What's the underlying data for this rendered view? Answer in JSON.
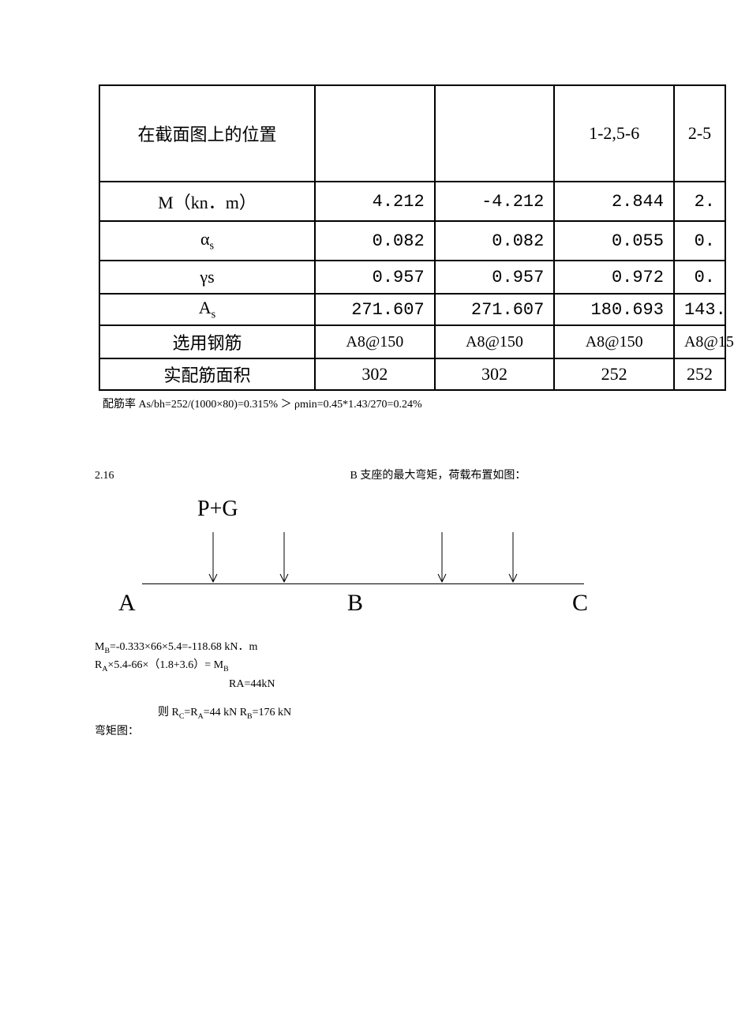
{
  "table": {
    "headers": {
      "pos": "在截面图上的位置",
      "c3": "1-2,5-6",
      "c4": "2-5"
    },
    "rows": {
      "m_label": "M（kn．m）",
      "m": [
        "4.212",
        "-4.212",
        "2.844",
        "2."
      ],
      "alpha_label_pre": "α",
      "alpha_label_sub": "s",
      "alpha": [
        "0.082",
        "0.082",
        "0.055",
        "0."
      ],
      "gamma_label": "γs",
      "gamma": [
        "0.957",
        "0.957",
        "0.972",
        "0."
      ],
      "as_label_pre": "A",
      "as_label_sub": "s",
      "as": [
        "271.607",
        "271.607",
        "180.693",
        "143."
      ],
      "steel_label": "选用钢筋",
      "steel": [
        "A8@150",
        "A8@150",
        "A8@150",
        "A8@15"
      ],
      "area_label": "实配筋面积",
      "area": [
        "302",
        "302",
        "252",
        "252"
      ]
    }
  },
  "note": "配筋率 As/bh=252/(1000×80)=0.315% ＞ ρmin=0.45*1.43/270=0.24%",
  "section": {
    "num": "2.16",
    "desc": "B 支座的最大弯矩，荷载布置如图："
  },
  "diagram": {
    "pg": "P+G",
    "A": "A",
    "B": "B",
    "C": "C",
    "arrows_x": [
      90,
      180,
      380,
      470
    ]
  },
  "eqs": {
    "l1_pre": "M",
    "l1_sub": "B",
    "l1_post": "=-0.333×66×5.4=-118.68  kN．m",
    "l2_pre": "R",
    "l2_sub": "A",
    "l2_post": "×5.4-66×（1.8+3.6）= M",
    "l2_sub2": "B",
    "l3": "RA=44kN",
    "l4_pre": "则 R",
    "l4_s1": "C",
    "l4_mid1": "=R",
    "l4_s2": "A",
    "l4_mid2": "=44 kN    R",
    "l4_s3": "B",
    "l4_post": "=176 kN",
    "l5": "弯矩图："
  }
}
